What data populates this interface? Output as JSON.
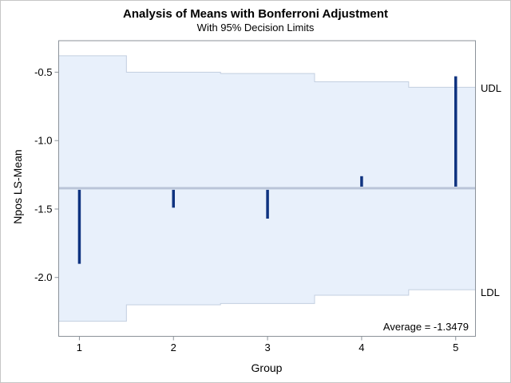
{
  "chart_data": {
    "type": "bar",
    "subtype": "anom-needle-chart",
    "title": "Analysis of Means with Bonferroni Adjustment",
    "subtitle": "With 95% Decision Limits",
    "xlabel": "Group",
    "ylabel": "Npos LS-Mean",
    "categories": [
      "1",
      "2",
      "3",
      "4",
      "5"
    ],
    "center_value": -1.3479,
    "series": [
      {
        "name": "Npos LS-Mean",
        "values": [
          -1.9,
          -1.49,
          -1.57,
          -1.26,
          -0.53
        ]
      },
      {
        "name": "Upper Decision Limit",
        "values": [
          -0.38,
          -0.5,
          -0.51,
          -0.57,
          -0.61
        ]
      },
      {
        "name": "Lower Decision Limit",
        "values": [
          -2.32,
          -2.2,
          -2.19,
          -2.13,
          -2.09
        ]
      }
    ],
    "annotations": {
      "udl": "UDL",
      "ldl": "LDL",
      "average": "Average = -1.3479"
    },
    "y_ticks": {
      "values": [
        -0.5,
        -1.0,
        -1.5,
        -2.0
      ],
      "labels": [
        "-0.5",
        "-1.0",
        "-1.5",
        "-2.0"
      ]
    },
    "xlim": [
      0.78,
      5.21
    ],
    "ylim": [
      -2.43,
      -0.27
    ],
    "grid": false,
    "legend_position": "none",
    "colors": {
      "band_fill": "#e8f0fb",
      "band_edge": "#c3cfe0",
      "center_line": "#bac5d8",
      "needle": "#0f3380",
      "frame": "#8b9299",
      "tick": "#8b9299",
      "text": "#000000",
      "figure_border": "#c6c6c6"
    }
  }
}
